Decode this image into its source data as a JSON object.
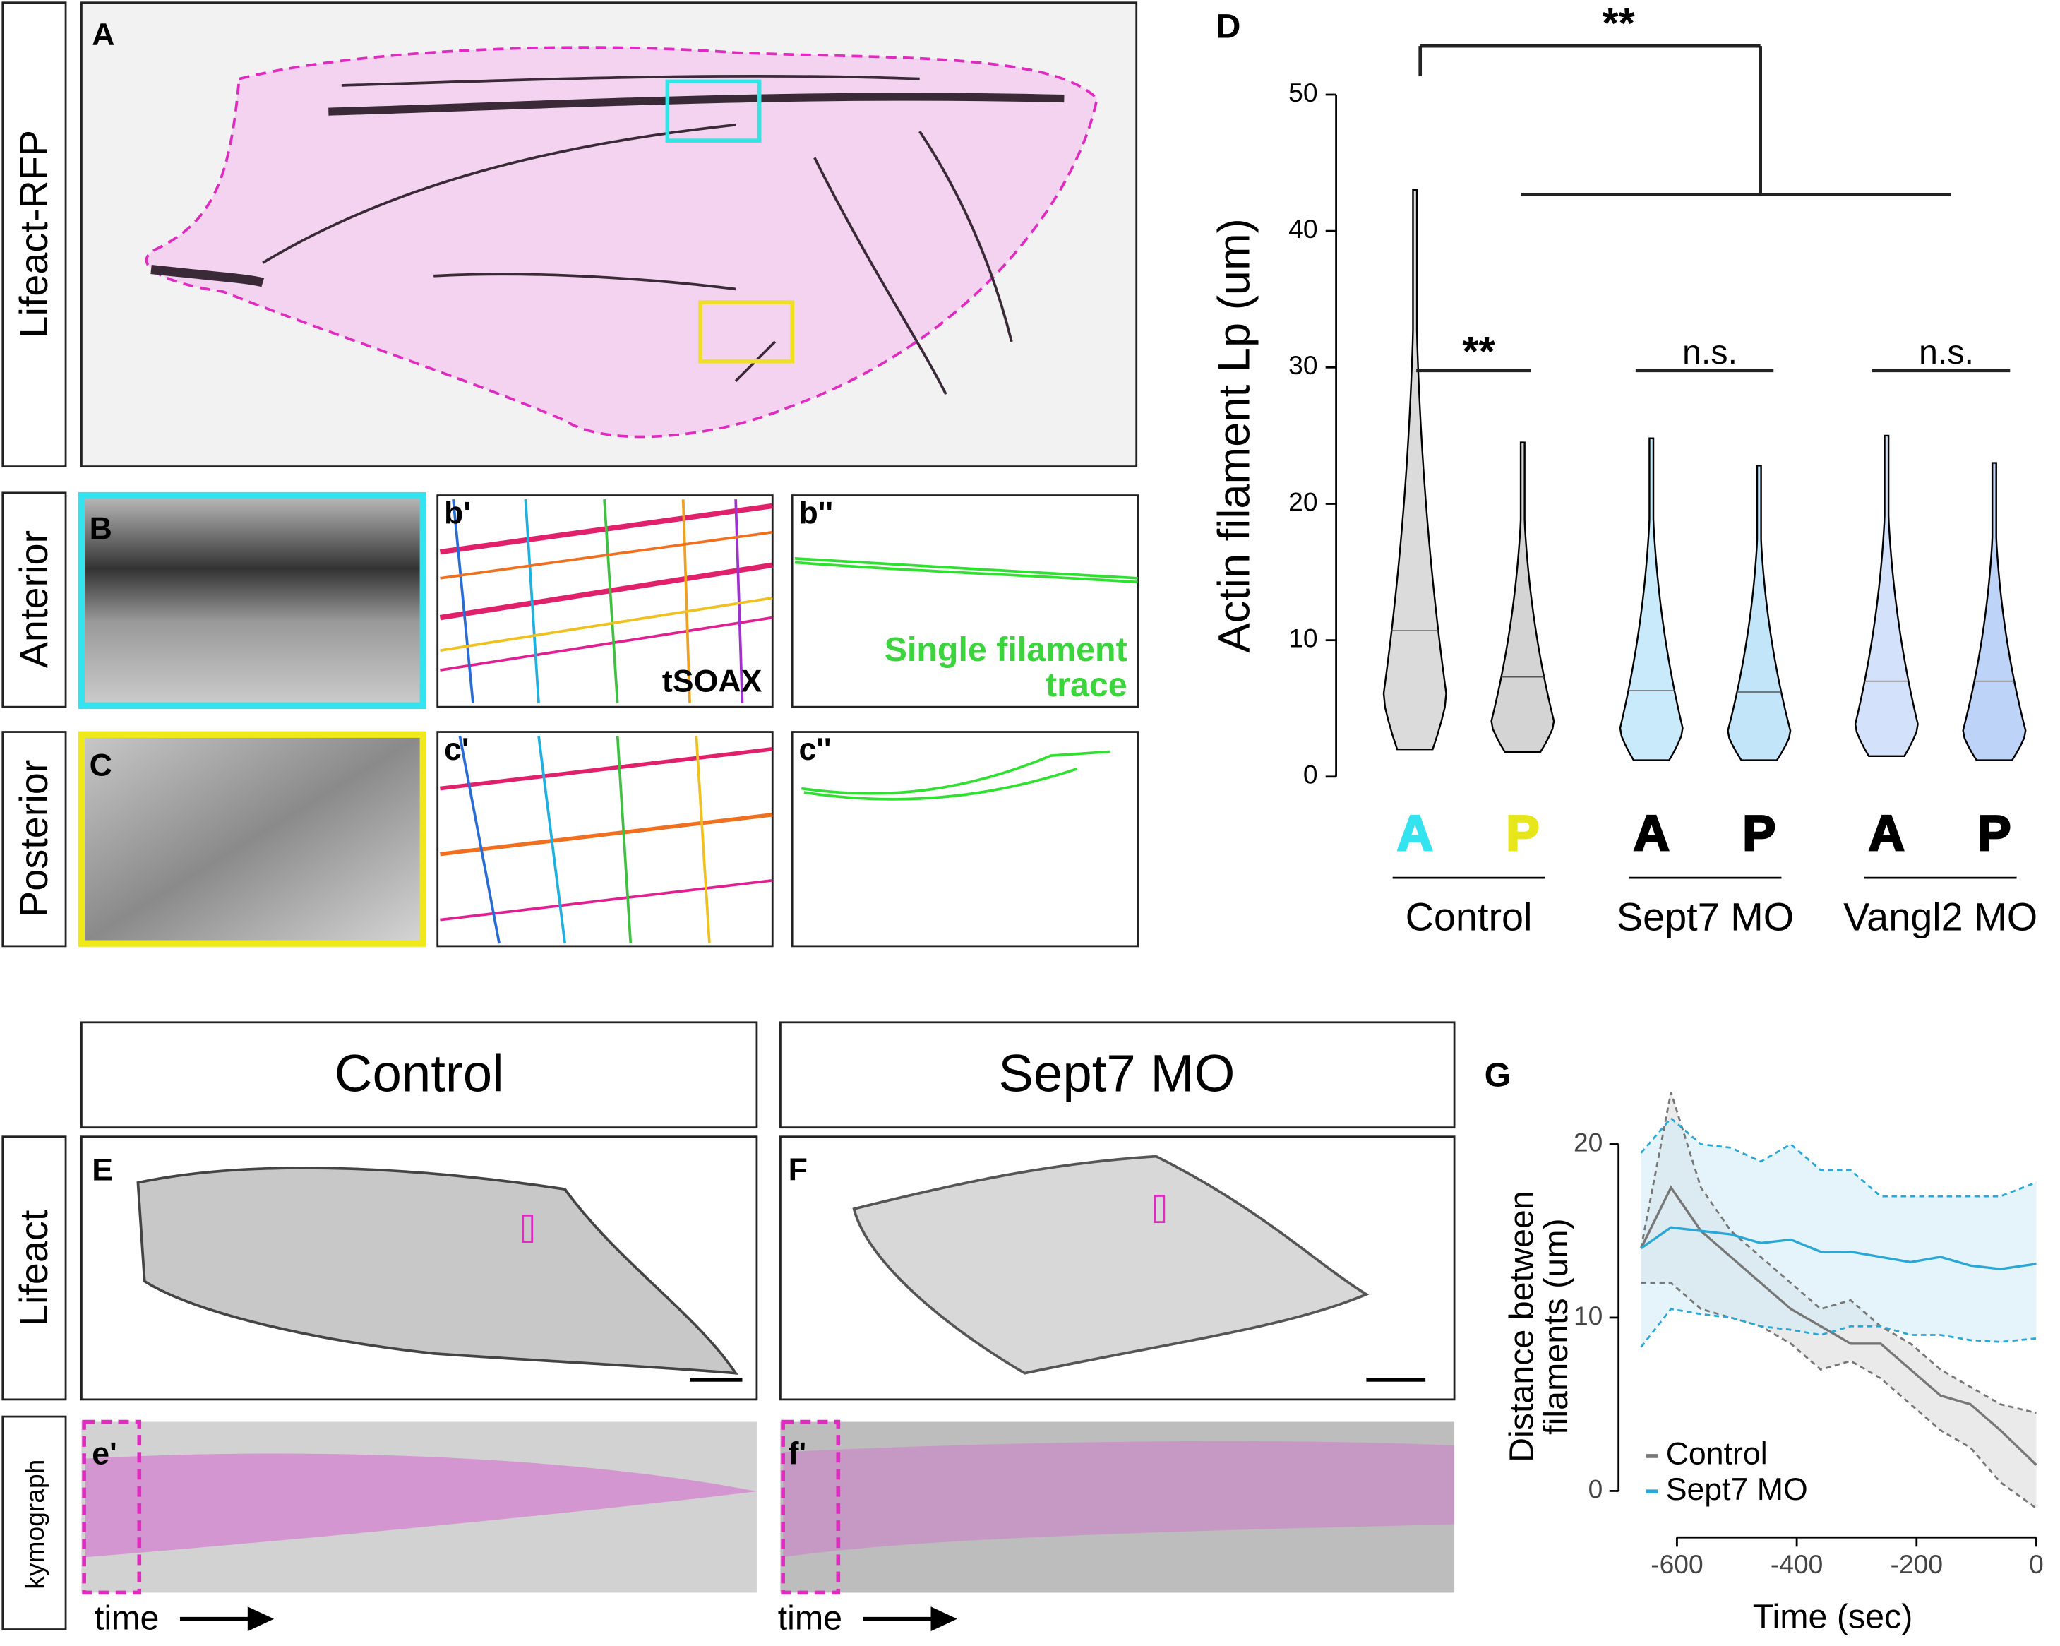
{
  "figure": {
    "panel_a": {
      "letter": "A",
      "row_label": "Lifeact-RFP"
    },
    "panel_b": {
      "row_label": "Anterior",
      "letters": [
        "B",
        "b'",
        "b''"
      ],
      "method": "tSOAX",
      "trace_label": [
        "Single filament",
        "trace"
      ]
    },
    "panel_c": {
      "row_label": "Posterior",
      "letters": [
        "C",
        "c'",
        "c''"
      ]
    },
    "panel_e": {
      "header": "Control",
      "letter": "E",
      "kymo_letter": "e'"
    },
    "panel_f": {
      "header": "Sept7 MO",
      "letter": "F",
      "kymo_letter": "f'"
    },
    "row_labels": {
      "lifeact": "Lifeact",
      "kymograph": "kymograph"
    },
    "time_label": "time"
  },
  "chart_data": [
    {
      "type": "violin",
      "panel": "D",
      "ylabel": "Actin filament Lp (um)",
      "categories": [
        "A",
        "P",
        "A",
        "P",
        "A",
        "P"
      ],
      "category_colors": [
        "#33e3ef",
        "#e6e61a",
        "#000000",
        "#000000",
        "#000000",
        "#000000"
      ],
      "groups": [
        "Control",
        "Sept7 MO",
        "Vangl2 MO"
      ],
      "violins": [
        {
          "min": 2,
          "median": 10.7,
          "max": 43,
          "color": "#bdbdbd"
        },
        {
          "min": 1.8,
          "median": 7.3,
          "max": 24.5,
          "color": "#b0b0b0"
        },
        {
          "min": 1.2,
          "median": 6.3,
          "max": 24.8,
          "color": "#9ad8f6"
        },
        {
          "min": 1.2,
          "median": 6.2,
          "max": 22.8,
          "color": "#8fd0f4"
        },
        {
          "min": 1.5,
          "median": 7,
          "max": 25,
          "color": "#aecbf6"
        },
        {
          "min": 1.2,
          "median": 7,
          "max": 23,
          "color": "#86aef3"
        }
      ],
      "annotations": [
        "**",
        "**",
        "n.s.",
        "n.s."
      ],
      "ylim": [
        0,
        50
      ],
      "yticks": [
        0,
        10,
        20,
        30,
        40,
        50
      ]
    },
    {
      "type": "line",
      "panel": "G",
      "xlabel": "Time (sec)",
      "ylabel": [
        "Distance between",
        "filaments (um)"
      ],
      "x": [
        -660,
        -610,
        -560,
        -510,
        -460,
        -410,
        -360,
        -310,
        -260,
        -210,
        -160,
        -110,
        -60,
        0
      ],
      "series": [
        {
          "name": "Control",
          "color": "#777777",
          "band_color": "#d9d9d9",
          "values": [
            14,
            17.5,
            15,
            13.5,
            12,
            10.5,
            9.5,
            8.5,
            8.5,
            7,
            5.5,
            5,
            3.5,
            1.5
          ],
          "upper": [
            14,
            23,
            17.5,
            15,
            13.5,
            12,
            10.5,
            11,
            9.5,
            8.5,
            7,
            6,
            5,
            4.5
          ],
          "lower": [
            12,
            12,
            10.5,
            10,
            9.5,
            8.5,
            7,
            7.5,
            6.5,
            5,
            3.5,
            2.5,
            0.5,
            -1
          ]
        },
        {
          "name": "Sept7 MO",
          "color": "#2aa7d6",
          "band_color": "#cfe9f6",
          "values": [
            14,
            15.2,
            15,
            14.8,
            14.3,
            14.5,
            13.8,
            13.8,
            13.5,
            13.2,
            13.5,
            13,
            12.8,
            13.1
          ],
          "upper": [
            19.5,
            21.5,
            20,
            19.8,
            19,
            20,
            18.5,
            18.5,
            17,
            17,
            17,
            17,
            17,
            17.8
          ],
          "lower": [
            8.3,
            10.5,
            10.2,
            10,
            9.5,
            9.3,
            9,
            9.5,
            9.5,
            9,
            9,
            8.7,
            8.6,
            8.8
          ]
        }
      ],
      "xlim": [
        -680,
        0
      ],
      "ylim": [
        -2,
        24
      ],
      "xticks": [
        -600,
        -400,
        -200,
        0
      ],
      "yticks": [
        0,
        10,
        20
      ]
    }
  ]
}
